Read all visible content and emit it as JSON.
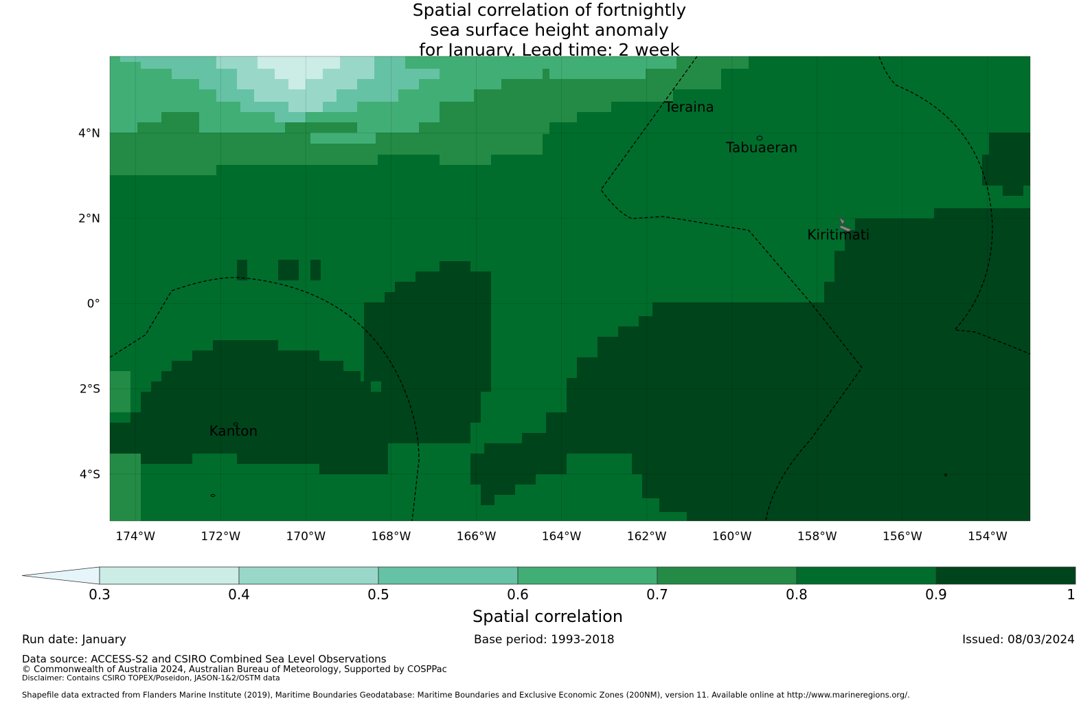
{
  "title_lines": [
    "Spatial correlation of fortnightly",
    "sea surface height anomaly",
    "for January. Lead time: 2 week"
  ],
  "map": {
    "lat_range": [
      -5.1,
      5.8
    ],
    "lon_range": [
      -174.6,
      -153.0
    ],
    "lat_ticks": [
      {
        "value": 4,
        "label": "4°N"
      },
      {
        "value": 2,
        "label": "2°N"
      },
      {
        "value": 0,
        "label": "0°"
      },
      {
        "value": -2,
        "label": "2°S"
      },
      {
        "value": -4,
        "label": "4°S"
      }
    ],
    "lon_ticks": [
      {
        "value": -174,
        "label": "174°W"
      },
      {
        "value": -172,
        "label": "172°W"
      },
      {
        "value": -170,
        "label": "170°W"
      },
      {
        "value": -168,
        "label": "168°W"
      },
      {
        "value": -166,
        "label": "166°W"
      },
      {
        "value": -164,
        "label": "164°W"
      },
      {
        "value": -162,
        "label": "162°W"
      },
      {
        "value": -160,
        "label": "160°W"
      },
      {
        "value": -158,
        "label": "158°W"
      },
      {
        "value": -156,
        "label": "156°W"
      },
      {
        "value": -154,
        "label": "154°W"
      }
    ],
    "places": [
      {
        "name": "Teraina",
        "lon": -161.0,
        "lat": 4.5
      },
      {
        "name": "Tabuaeran",
        "lon": -159.3,
        "lat": 3.55
      },
      {
        "name": "Kiritimati",
        "lon": -157.5,
        "lat": 1.5
      },
      {
        "name": "Kanton",
        "lon": -171.7,
        "lat": -3.1
      }
    ]
  },
  "colorbar": {
    "ticks": [
      "0.3",
      "0.4",
      "0.5",
      "0.6",
      "0.7",
      "0.8",
      "0.9",
      "1"
    ],
    "colors": [
      "#e5f5f9",
      "#ccece6",
      "#99d8c9",
      "#66c2a4",
      "#41ae76",
      "#238b45",
      "#006d2c",
      "#00441b"
    ],
    "label": "Spatial correlation",
    "extend": "min"
  },
  "footer": {
    "run_date": "Run date: January",
    "base_period": "Base period: 1993-2018",
    "issued": "Issued: 08/03/2024",
    "data_source": "Data source: ACCESS-S2 and CSIRO Combined Sea Level Observations",
    "copyright": "© Commonwealth of Australia 2024, Australian Bureau of Meteorology, Supported by COSPPac",
    "disclaimer": "Disclaimer: Contains CSIRO TOPEX/Poseidon, JASON-1&2/OSTM data",
    "shapefile": "Shapefile data extracted from Flanders Marine Institute (2019), Maritime Boundaries Geodatabase: Maritime Boundaries and Exclusive Economic Zones (200NM), version 11. Available online at http://www.marineregions.org/."
  }
}
